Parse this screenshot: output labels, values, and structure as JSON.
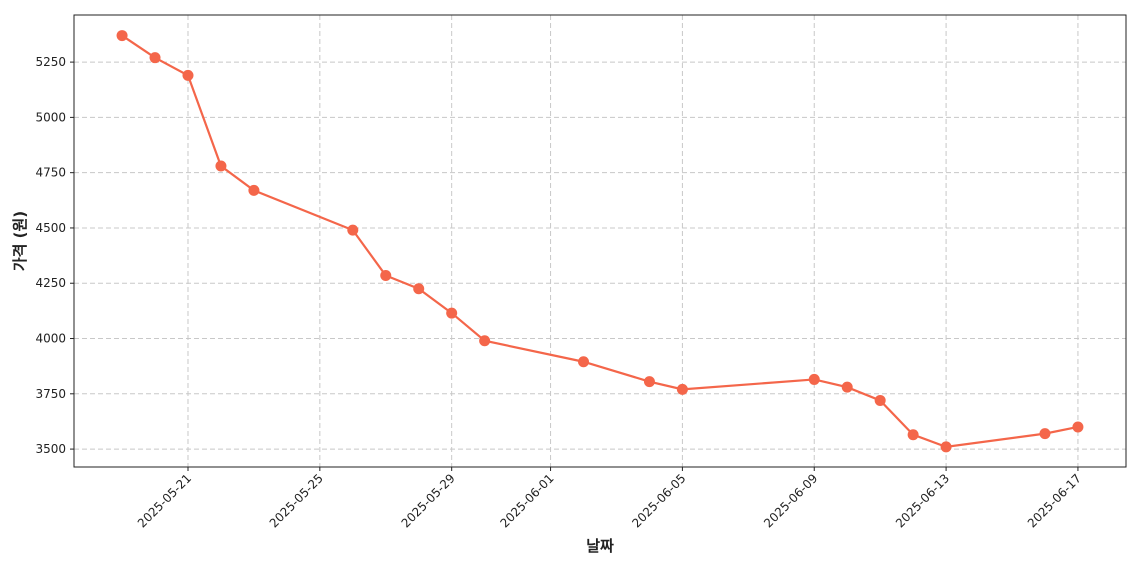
{
  "chart_data": {
    "type": "line",
    "xlabel": "날짜",
    "ylabel": "가격 (원)",
    "x": [
      "2025-05-19",
      "2025-05-20",
      "2025-05-21",
      "2025-05-22",
      "2025-05-23",
      "2025-05-26",
      "2025-05-27",
      "2025-05-28",
      "2025-05-29",
      "2025-05-30",
      "2025-06-02",
      "2025-06-04",
      "2025-06-05",
      "2025-06-09",
      "2025-06-10",
      "2025-06-11",
      "2025-06-12",
      "2025-06-13",
      "2025-06-16",
      "2025-06-17"
    ],
    "series": [
      {
        "color": "#f4664a",
        "values": [
          5370,
          5270,
          5190,
          4780,
          4670,
          4490,
          4285,
          4225,
          4115,
          3990,
          3895,
          3805,
          3770,
          3815,
          3780,
          3720,
          3565,
          3510,
          3570,
          3600
        ]
      }
    ],
    "xlim": [
      "2025-05-17T13:00",
      "2025-06-18T11:00"
    ],
    "xticks": [
      "2025-05-21",
      "2025-05-25",
      "2025-05-29",
      "2025-06-01",
      "2025-06-05",
      "2025-06-09",
      "2025-06-13",
      "2025-06-17"
    ],
    "ylim": [
      3419,
      5463
    ],
    "yticks": [
      3500,
      3750,
      4000,
      4250,
      4500,
      4750,
      5000,
      5250
    ],
    "grid": true
  }
}
